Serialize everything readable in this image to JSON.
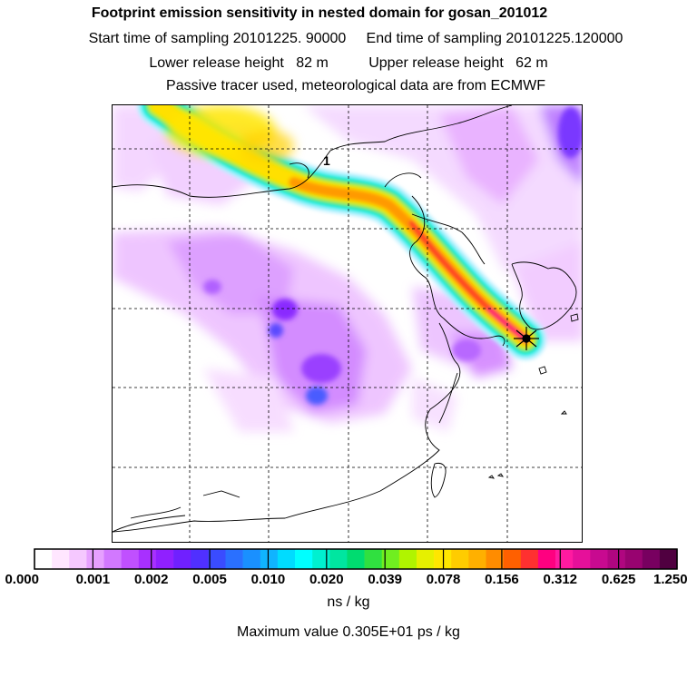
{
  "header": {
    "title": "Footprint emission sensitivity in nested domain for gosan_201012",
    "sampling": "Start time of sampling 20101225. 90000     End time of sampling 20101225.120000",
    "release": "Lower release height   82 m          Upper release height   62 m",
    "tracer": "Passive tracer used, meteorological data are from ECMWF"
  },
  "chart_data": {
    "type": "heatmap",
    "title": "Footprint emission sensitivity in nested domain for gosan_201012",
    "legend": {
      "colors": [
        "#ffffff",
        "#ffe6ff",
        "#f5c8ff",
        "#e6a0ff",
        "#d278ff",
        "#c050ff",
        "#a830ff",
        "#9020ff",
        "#7020ff",
        "#5030ff",
        "#3a4cff",
        "#2a70ff",
        "#1a90ff",
        "#10b4ff",
        "#00dcff",
        "#00ffff",
        "#00f0d0",
        "#00e6a0",
        "#00dc70",
        "#30e040",
        "#70ee20",
        "#b0f400",
        "#e6f000",
        "#ffe600",
        "#ffcc00",
        "#ffb000",
        "#ff8c00",
        "#ff6000",
        "#ff3030",
        "#ff0080",
        "#ff1aa0",
        "#e6109a",
        "#c80a90",
        "#b00680",
        "#980370",
        "#780060",
        "#500040"
      ],
      "tick_labels": [
        "0.000",
        "0.001",
        "0.002",
        "0.005",
        "0.010",
        "0.020",
        "0.039",
        "0.078",
        "0.156",
        "0.312",
        "0.625",
        "1.250"
      ],
      "units": "ns / kg"
    },
    "annotation": "Maximum value  0.305E+01 ps / kg",
    "contour_label": "1",
    "features": [
      "emission plume from northwest to receptor at Gosan",
      "receptor marker (star)"
    ]
  }
}
